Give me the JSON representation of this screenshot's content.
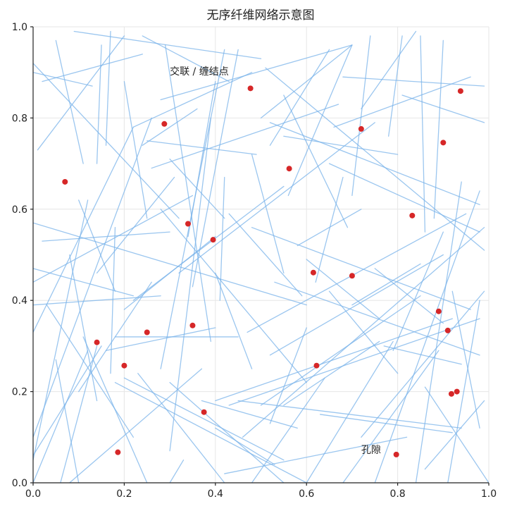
{
  "chart_data": {
    "type": "scatter",
    "title": "无序纤维网络示意图",
    "xlabel": "",
    "ylabel": "",
    "xlim": [
      0,
      1
    ],
    "ylim": [
      0,
      1
    ],
    "grid": true,
    "xticks": [
      "0.0",
      "0.2",
      "0.4",
      "0.6",
      "0.8",
      "1.0"
    ],
    "yticks": [
      "0.0",
      "0.2",
      "0.4",
      "0.6",
      "0.8",
      "1.0"
    ],
    "fiber_color": "#7ab3ea",
    "node_color": "#d62728",
    "annotations": [
      {
        "text": "交联 / 缠结点",
        "x": 0.3,
        "y": 0.895
      },
      {
        "text": "孔隙",
        "x": 0.72,
        "y": 0.065
      }
    ],
    "nodes": [
      {
        "x": 0.07,
        "y": 0.66
      },
      {
        "x": 0.14,
        "y": 0.308
      },
      {
        "x": 0.186,
        "y": 0.067
      },
      {
        "x": 0.2,
        "y": 0.257
      },
      {
        "x": 0.25,
        "y": 0.33
      },
      {
        "x": 0.288,
        "y": 0.787
      },
      {
        "x": 0.34,
        "y": 0.568
      },
      {
        "x": 0.35,
        "y": 0.345
      },
      {
        "x": 0.375,
        "y": 0.155
      },
      {
        "x": 0.395,
        "y": 0.533
      },
      {
        "x": 0.477,
        "y": 0.865
      },
      {
        "x": 0.562,
        "y": 0.689
      },
      {
        "x": 0.615,
        "y": 0.461
      },
      {
        "x": 0.622,
        "y": 0.257
      },
      {
        "x": 0.7,
        "y": 0.454
      },
      {
        "x": 0.72,
        "y": 0.776
      },
      {
        "x": 0.797,
        "y": 0.062
      },
      {
        "x": 0.832,
        "y": 0.586
      },
      {
        "x": 0.89,
        "y": 0.376
      },
      {
        "x": 0.9,
        "y": 0.746
      },
      {
        "x": 0.91,
        "y": 0.334
      },
      {
        "x": 0.918,
        "y": 0.195
      },
      {
        "x": 0.93,
        "y": 0.2
      },
      {
        "x": 0.938,
        "y": 0.859
      }
    ],
    "fibers": [
      [
        0.02,
        0.88,
        0.24,
        0.94
      ],
      [
        0.09,
        0.99,
        0.5,
        0.93
      ],
      [
        0.01,
        0.73,
        0.2,
        0.98
      ],
      [
        0.0,
        0.92,
        0.32,
        0.58
      ],
      [
        0.05,
        0.97,
        0.11,
        0.7
      ],
      [
        0.13,
        0.87,
        0.0,
        0.9
      ],
      [
        0.0,
        0.57,
        0.6,
        0.39
      ],
      [
        0.0,
        0.44,
        0.35,
        0.63
      ],
      [
        0.02,
        0.53,
        0.3,
        0.55
      ],
      [
        0.0,
        0.47,
        0.22,
        0.41
      ],
      [
        0.0,
        0.39,
        0.28,
        0.41
      ],
      [
        0.03,
        0.39,
        0.22,
        0.1
      ],
      [
        0.0,
        0.33,
        0.22,
        0.78
      ],
      [
        0.05,
        0.27,
        0.1,
        0.0
      ],
      [
        0.08,
        0.5,
        0.14,
        0.18
      ],
      [
        0.1,
        0.62,
        0.18,
        0.42
      ],
      [
        0.15,
        0.96,
        0.14,
        0.7
      ],
      [
        0.17,
        0.99,
        0.16,
        0.74
      ],
      [
        0.14,
        0.3,
        0.06,
        0.0
      ],
      [
        0.0,
        0.1,
        0.26,
        0.8
      ],
      [
        0.0,
        0.05,
        0.12,
        0.62
      ],
      [
        0.0,
        0.06,
        0.15,
        0.3
      ],
      [
        0.2,
        0.88,
        0.25,
        0.58
      ],
      [
        0.18,
        0.56,
        0.17,
        0.24
      ],
      [
        0.2,
        0.23,
        0.55,
        0.05
      ],
      [
        0.25,
        0.75,
        0.49,
        0.72
      ],
      [
        0.24,
        0.74,
        0.36,
        0.82
      ],
      [
        0.22,
        0.78,
        0.48,
        0.9
      ],
      [
        0.28,
        0.84,
        0.7,
        0.96
      ],
      [
        0.24,
        0.98,
        0.43,
        0.88
      ],
      [
        0.26,
        0.69,
        0.67,
        0.83
      ],
      [
        0.3,
        0.71,
        0.42,
        0.58
      ],
      [
        0.32,
        0.46,
        0.75,
        0.79
      ],
      [
        0.29,
        0.96,
        0.39,
        0.31
      ],
      [
        0.4,
        0.88,
        0.34,
        0.54
      ],
      [
        0.45,
        0.95,
        0.35,
        0.43
      ],
      [
        0.42,
        0.95,
        0.28,
        0.25
      ],
      [
        0.39,
        0.8,
        0.3,
        0.07
      ],
      [
        0.42,
        0.67,
        0.41,
        0.4
      ],
      [
        0.4,
        0.54,
        0.2,
        0.38
      ],
      [
        0.31,
        0.67,
        0.14,
        0.46
      ],
      [
        0.22,
        0.4,
        0.55,
        0.65
      ],
      [
        0.18,
        0.32,
        0.45,
        0.32
      ],
      [
        0.16,
        0.29,
        0.4,
        0.34
      ],
      [
        0.18,
        0.22,
        0.6,
        0.0
      ],
      [
        0.23,
        0.24,
        0.42,
        0.0
      ],
      [
        0.25,
        0.0,
        0.11,
        0.32
      ],
      [
        0.12,
        0.29,
        0.0,
        0.0
      ],
      [
        0.08,
        0.0,
        0.37,
        0.25
      ],
      [
        0.1,
        0.2,
        0.26,
        0.44
      ],
      [
        0.28,
        0.6,
        0.6,
        0.22
      ],
      [
        0.4,
        0.46,
        0.48,
        0.25
      ],
      [
        0.43,
        0.59,
        0.59,
        0.41
      ],
      [
        0.48,
        0.72,
        0.55,
        0.46
      ],
      [
        0.5,
        0.8,
        0.7,
        0.96
      ],
      [
        0.52,
        0.79,
        0.98,
        0.61
      ],
      [
        0.52,
        0.74,
        0.65,
        0.95
      ],
      [
        0.56,
        0.63,
        0.7,
        0.96
      ],
      [
        0.51,
        0.91,
        0.99,
        0.51
      ],
      [
        0.55,
        0.76,
        0.8,
        0.72
      ],
      [
        0.68,
        0.89,
        0.99,
        0.87
      ],
      [
        0.66,
        0.78,
        0.96,
        0.89
      ],
      [
        0.78,
        0.76,
        0.81,
        0.98
      ],
      [
        0.81,
        0.85,
        0.99,
        0.79
      ],
      [
        0.72,
        0.82,
        0.84,
        0.99
      ],
      [
        0.74,
        0.98,
        0.7,
        0.63
      ],
      [
        0.85,
        0.98,
        0.86,
        0.55
      ],
      [
        0.9,
        0.97,
        0.88,
        0.58
      ],
      [
        0.55,
        0.85,
        0.69,
        0.56
      ],
      [
        0.48,
        0.56,
        0.96,
        0.38
      ],
      [
        0.47,
        0.33,
        0.95,
        0.59
      ],
      [
        0.52,
        0.28,
        0.9,
        0.5
      ],
      [
        0.53,
        0.44,
        0.98,
        0.28
      ],
      [
        0.6,
        0.49,
        0.76,
        0.36
      ],
      [
        0.65,
        0.42,
        0.8,
        0.24
      ],
      [
        0.65,
        0.7,
        0.98,
        0.55
      ],
      [
        0.68,
        0.67,
        0.62,
        0.44
      ],
      [
        0.75,
        0.47,
        0.9,
        0.35
      ],
      [
        0.77,
        0.3,
        0.94,
        0.26
      ],
      [
        0.4,
        0.18,
        0.92,
        0.36
      ],
      [
        0.43,
        0.17,
        0.98,
        0.36
      ],
      [
        0.5,
        0.17,
        0.85,
        0.41
      ],
      [
        0.46,
        0.1,
        0.99,
        0.56
      ],
      [
        0.55,
        0.17,
        0.76,
        0.31
      ],
      [
        0.37,
        0.18,
        0.58,
        0.12
      ],
      [
        0.45,
        0.18,
        0.94,
        0.12
      ],
      [
        0.3,
        0.22,
        0.55,
        0.0
      ],
      [
        0.4,
        0.12,
        0.53,
        0.04
      ],
      [
        0.42,
        0.02,
        0.82,
        0.1
      ],
      [
        0.48,
        0.0,
        0.64,
        0.23
      ],
      [
        0.6,
        0.0,
        0.79,
        0.31
      ],
      [
        0.68,
        0.0,
        0.89,
        0.29
      ],
      [
        0.72,
        0.1,
        0.99,
        0.42
      ],
      [
        0.75,
        0.0,
        0.98,
        0.64
      ],
      [
        0.84,
        0.0,
        0.94,
        0.66
      ],
      [
        0.91,
        0.0,
        0.98,
        0.4
      ],
      [
        0.86,
        0.21,
        1.0,
        0.0
      ],
      [
        0.86,
        0.03,
        0.99,
        0.18
      ],
      [
        0.92,
        0.42,
        0.98,
        0.12
      ],
      [
        0.79,
        0.29,
        0.9,
        0.55
      ],
      [
        0.7,
        0.39,
        0.85,
        0.48
      ],
      [
        0.58,
        0.52,
        0.72,
        0.6
      ],
      [
        0.33,
        0.05,
        0.3,
        0.0
      ],
      [
        0.6,
        0.34,
        0.52,
        0.13
      ],
      [
        0.63,
        0.15,
        0.92,
        0.11
      ]
    ]
  }
}
